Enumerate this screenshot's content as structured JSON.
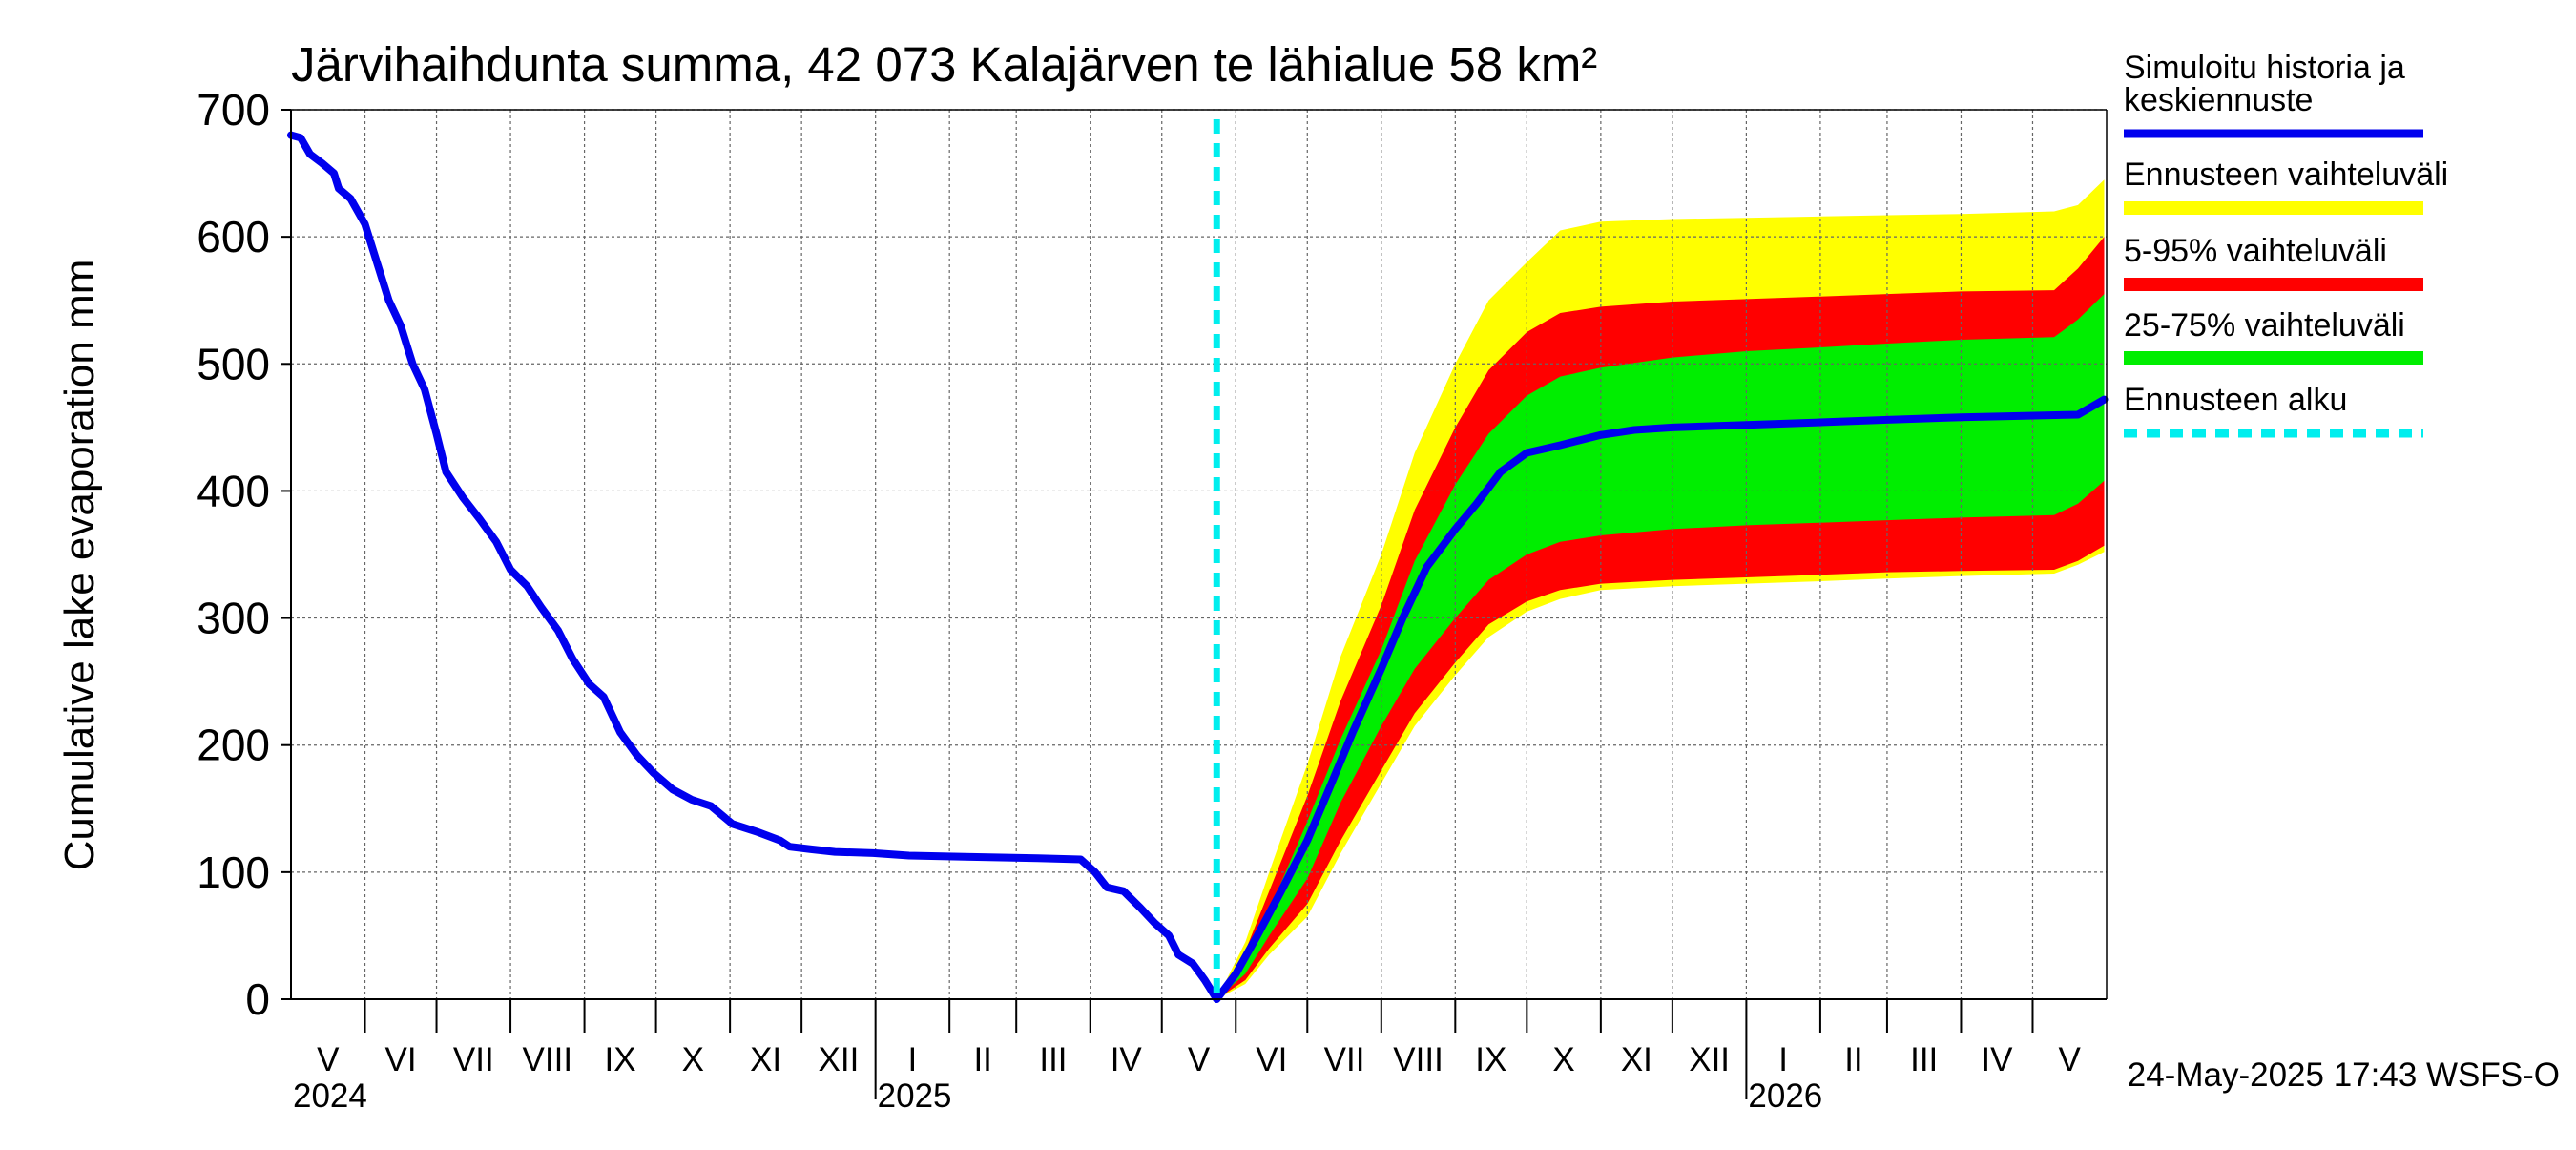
{
  "chart_data": {
    "type": "area",
    "title": "Järvihaihdunta summa, 42 073 Kalajärven te lähialue 58 km²",
    "ylabel": "Cumulative lake evaporation   mm",
    "xlabel": "",
    "ylim": [
      0,
      700
    ],
    "yticks": [
      0,
      100,
      200,
      300,
      400,
      500,
      600,
      700
    ],
    "grid": true,
    "legend_position": "right",
    "x_start": "2024-05-01",
    "x_end": "2026-05-31",
    "forecast_start": "2025-05-24",
    "timestamp": "24-May-2025 17:43 WSFS-O",
    "months": [
      {
        "label": "V",
        "start": "2024-05-01"
      },
      {
        "label": "VI",
        "start": "2024-06-01"
      },
      {
        "label": "VII",
        "start": "2024-07-01"
      },
      {
        "label": "VIII",
        "start": "2024-08-01"
      },
      {
        "label": "IX",
        "start": "2024-09-01"
      },
      {
        "label": "X",
        "start": "2024-10-01"
      },
      {
        "label": "XI",
        "start": "2024-11-01"
      },
      {
        "label": "XII",
        "start": "2024-12-01"
      },
      {
        "label": "I",
        "start": "2025-01-01"
      },
      {
        "label": "II",
        "start": "2025-02-01"
      },
      {
        "label": "III",
        "start": "2025-03-01"
      },
      {
        "label": "IV",
        "start": "2025-04-01"
      },
      {
        "label": "V",
        "start": "2025-05-01"
      },
      {
        "label": "VI",
        "start": "2025-06-01"
      },
      {
        "label": "VII",
        "start": "2025-07-01"
      },
      {
        "label": "VIII",
        "start": "2025-08-01"
      },
      {
        "label": "IX",
        "start": "2025-09-01"
      },
      {
        "label": "X",
        "start": "2025-10-01"
      },
      {
        "label": "XI",
        "start": "2025-11-01"
      },
      {
        "label": "XII",
        "start": "2025-12-01"
      },
      {
        "label": "I",
        "start": "2026-01-01"
      },
      {
        "label": "II",
        "start": "2026-02-01"
      },
      {
        "label": "III",
        "start": "2026-03-01"
      },
      {
        "label": "IV",
        "start": "2026-04-01"
      },
      {
        "label": "V",
        "start": "2026-05-01"
      }
    ],
    "years": [
      {
        "label": "2024",
        "start": "2024-05-01"
      },
      {
        "label": "2025",
        "start": "2025-01-01"
      },
      {
        "label": "2026",
        "start": "2026-01-01"
      }
    ],
    "legend": [
      {
        "label": "Simuloitu historia ja keskiennuste",
        "color": "#0000ee",
        "style": "line"
      },
      {
        "label": "Ennusteen vaihteluväli",
        "color": "#ffff00",
        "style": "band"
      },
      {
        "label": "5-95% vaihteluväli",
        "color": "#ff0000",
        "style": "band"
      },
      {
        "label": "25-75% vaihteluväli",
        "color": "#00ee00",
        "style": "band"
      },
      {
        "label": "Ennusteen alku",
        "color": "#00eeee",
        "style": "dashed"
      }
    ],
    "series": [
      {
        "name": "Simuloitu historia ja keskiennuste",
        "color": "#0000ee",
        "points": [
          [
            "2024-05-01",
            680
          ],
          [
            "2024-05-05",
            678
          ],
          [
            "2024-05-09",
            665
          ],
          [
            "2024-05-14",
            658
          ],
          [
            "2024-05-19",
            650
          ],
          [
            "2024-05-21",
            638
          ],
          [
            "2024-05-26",
            630
          ],
          [
            "2024-06-01",
            610
          ],
          [
            "2024-06-06",
            580
          ],
          [
            "2024-06-11",
            550
          ],
          [
            "2024-06-16",
            530
          ],
          [
            "2024-06-21",
            500
          ],
          [
            "2024-06-26",
            480
          ],
          [
            "2024-07-01",
            445
          ],
          [
            "2024-07-05",
            415
          ],
          [
            "2024-07-12",
            395
          ],
          [
            "2024-07-19",
            378
          ],
          [
            "2024-07-26",
            360
          ],
          [
            "2024-08-01",
            338
          ],
          [
            "2024-08-08",
            325
          ],
          [
            "2024-08-14",
            308
          ],
          [
            "2024-08-21",
            290
          ],
          [
            "2024-08-27",
            268
          ],
          [
            "2024-09-03",
            248
          ],
          [
            "2024-09-09",
            238
          ],
          [
            "2024-09-16",
            210
          ],
          [
            "2024-09-23",
            192
          ],
          [
            "2024-09-30",
            178
          ],
          [
            "2024-10-08",
            165
          ],
          [
            "2024-10-16",
            157
          ],
          [
            "2024-10-24",
            152
          ],
          [
            "2024-11-02",
            138
          ],
          [
            "2024-11-12",
            132
          ],
          [
            "2024-11-22",
            125
          ],
          [
            "2024-11-26",
            120
          ],
          [
            "2024-12-05",
            118
          ],
          [
            "2024-12-15",
            116
          ],
          [
            "2024-12-31",
            115
          ],
          [
            "2025-01-15",
            113
          ],
          [
            "2025-02-10",
            112
          ],
          [
            "2025-03-10",
            111
          ],
          [
            "2025-03-28",
            110
          ],
          [
            "2025-04-03",
            100
          ],
          [
            "2025-04-08",
            88
          ],
          [
            "2025-04-15",
            85
          ],
          [
            "2025-04-22",
            72
          ],
          [
            "2025-04-28",
            60
          ],
          [
            "2025-05-04",
            50
          ],
          [
            "2025-05-08",
            35
          ],
          [
            "2025-05-14",
            28
          ],
          [
            "2025-05-19",
            15
          ],
          [
            "2025-05-24",
            0
          ],
          [
            "2025-06-01",
            20
          ],
          [
            "2025-06-10",
            50
          ],
          [
            "2025-06-20",
            85
          ],
          [
            "2025-07-01",
            125
          ],
          [
            "2025-07-10",
            165
          ],
          [
            "2025-07-20",
            210
          ],
          [
            "2025-08-01",
            260
          ],
          [
            "2025-08-10",
            300
          ],
          [
            "2025-08-20",
            340
          ],
          [
            "2025-09-01",
            370
          ],
          [
            "2025-09-10",
            390
          ],
          [
            "2025-09-20",
            415
          ],
          [
            "2025-10-01",
            430
          ],
          [
            "2025-10-15",
            436
          ],
          [
            "2025-11-01",
            444
          ],
          [
            "2025-11-15",
            448
          ],
          [
            "2025-12-01",
            450
          ],
          [
            "2026-01-01",
            452
          ],
          [
            "2026-02-01",
            454
          ],
          [
            "2026-03-01",
            456
          ],
          [
            "2026-04-01",
            458
          ],
          [
            "2026-05-20",
            460
          ],
          [
            "2026-05-31",
            472
          ]
        ]
      },
      {
        "name": "Ennusteen vaihteluväli",
        "color": "#ffff00",
        "dates": [
          "2025-05-24",
          "2025-06-05",
          "2025-06-15",
          "2025-07-01",
          "2025-07-15",
          "2025-08-01",
          "2025-08-15",
          "2025-09-01",
          "2025-09-15",
          "2025-10-01",
          "2025-10-15",
          "2025-11-01",
          "2025-12-01",
          "2026-01-01",
          "2026-02-01",
          "2026-03-01",
          "2026-04-01",
          "2026-05-10",
          "2026-05-20",
          "2026-05-31"
        ],
        "upper": [
          0,
          45,
          100,
          185,
          270,
          350,
          430,
          500,
          550,
          580,
          605,
          612,
          614,
          615,
          616,
          617,
          618,
          620,
          625,
          645
        ],
        "lower": [
          0,
          12,
          35,
          65,
          115,
          170,
          215,
          255,
          285,
          305,
          315,
          322,
          325,
          327,
          329,
          331,
          333,
          335,
          342,
          352
        ]
      },
      {
        "name": "5-95% vaihteluväli",
        "color": "#ff0000",
        "dates": [
          "2025-05-24",
          "2025-06-05",
          "2025-06-15",
          "2025-07-01",
          "2025-07-15",
          "2025-08-01",
          "2025-08-15",
          "2025-09-01",
          "2025-09-15",
          "2025-10-01",
          "2025-10-15",
          "2025-11-01",
          "2025-12-01",
          "2026-01-01",
          "2026-02-01",
          "2026-03-01",
          "2026-04-01",
          "2026-05-10",
          "2026-05-20",
          "2026-05-31"
        ],
        "upper": [
          0,
          38,
          85,
          160,
          235,
          310,
          385,
          450,
          495,
          525,
          540,
          545,
          549,
          551,
          553,
          555,
          557,
          558,
          575,
          600
        ],
        "lower": [
          0,
          15,
          40,
          75,
          125,
          180,
          225,
          265,
          295,
          313,
          322,
          327,
          330,
          332,
          334,
          336,
          337,
          338,
          345,
          357
        ]
      },
      {
        "name": "25-75% vaihteluväli",
        "color": "#00ee00",
        "dates": [
          "2025-05-24",
          "2025-06-05",
          "2025-06-15",
          "2025-07-01",
          "2025-07-15",
          "2025-08-01",
          "2025-08-15",
          "2025-09-01",
          "2025-09-15",
          "2025-10-01",
          "2025-10-15",
          "2025-11-01",
          "2025-12-01",
          "2026-01-01",
          "2026-02-01",
          "2026-03-01",
          "2026-04-01",
          "2026-05-10",
          "2026-05-20",
          "2026-05-31"
        ],
        "upper": [
          0,
          32,
          70,
          140,
          205,
          275,
          345,
          405,
          445,
          475,
          490,
          497,
          505,
          510,
          513,
          516,
          519,
          521,
          535,
          555
        ],
        "lower": [
          0,
          20,
          50,
          95,
          155,
          215,
          260,
          300,
          330,
          350,
          360,
          365,
          370,
          373,
          375,
          377,
          379,
          381,
          390,
          408
        ]
      }
    ]
  }
}
